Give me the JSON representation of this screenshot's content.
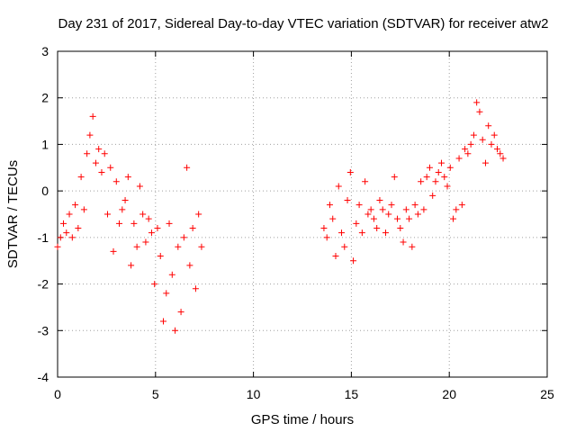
{
  "chart_data": {
    "type": "scatter",
    "title": "Day 231 of 2017, Sidereal Day-to-day VTEC variation (SDTVAR) for receiver atw2",
    "xlabel": "GPS time / hours",
    "ylabel": "SDTVAR / TECUs",
    "xlim": [
      0,
      25
    ],
    "ylim": [
      -4,
      3
    ],
    "xticks": [
      "0",
      "5",
      "10",
      "15",
      "20",
      "25"
    ],
    "yticks": [
      "-4",
      "-3",
      "-2",
      "-1",
      "0",
      "1",
      "2",
      "3"
    ],
    "grid": true,
    "marker": "plus",
    "color": "#ff0000",
    "series": [
      {
        "name": "atw2",
        "x": [
          0.0,
          0.15,
          0.3,
          0.45,
          0.6,
          0.75,
          0.9,
          1.05,
          1.2,
          1.35,
          1.5,
          1.65,
          1.8,
          1.95,
          2.1,
          2.25,
          2.4,
          2.55,
          2.7,
          2.85,
          3.0,
          3.15,
          3.3,
          3.45,
          3.6,
          3.75,
          3.9,
          4.05,
          4.2,
          4.35,
          4.5,
          4.65,
          4.8,
          4.95,
          5.1,
          5.25,
          5.4,
          5.55,
          5.7,
          5.85,
          6.0,
          6.15,
          6.3,
          6.45,
          6.6,
          6.75,
          6.9,
          7.05,
          7.2,
          7.35,
          13.6,
          13.75,
          13.9,
          14.05,
          14.2,
          14.35,
          14.5,
          14.65,
          14.8,
          14.95,
          15.1,
          15.25,
          15.4,
          15.55,
          15.7,
          15.85,
          16.0,
          16.15,
          16.3,
          16.45,
          16.6,
          16.75,
          16.9,
          17.05,
          17.2,
          17.35,
          17.5,
          17.65,
          17.8,
          17.95,
          18.1,
          18.25,
          18.4,
          18.55,
          18.7,
          18.85,
          19.0,
          19.15,
          19.3,
          19.45,
          19.6,
          19.75,
          19.9,
          20.05,
          20.2,
          20.35,
          20.5,
          20.65,
          20.8,
          20.95,
          21.1,
          21.25,
          21.4,
          21.55,
          21.7,
          21.85,
          22.0,
          22.15,
          22.3,
          22.45,
          22.6,
          22.75
        ],
        "y": [
          -1.2,
          -1.0,
          -0.7,
          -0.9,
          -0.5,
          -1.0,
          -0.3,
          -0.8,
          0.3,
          -0.4,
          0.8,
          1.2,
          1.6,
          0.6,
          0.9,
          0.4,
          0.8,
          -0.5,
          0.5,
          -1.3,
          0.2,
          -0.7,
          -0.4,
          -0.2,
          0.3,
          -1.6,
          -0.7,
          -1.2,
          0.1,
          -0.5,
          -1.1,
          -0.6,
          -0.9,
          -2.0,
          -0.8,
          -1.4,
          -2.8,
          -2.2,
          -0.7,
          -1.8,
          -3.0,
          -1.2,
          -2.6,
          -1.0,
          0.5,
          -1.6,
          -0.8,
          -2.1,
          -0.5,
          -1.2,
          -0.8,
          -1.0,
          -0.3,
          -0.6,
          -1.4,
          0.1,
          -0.9,
          -1.2,
          -0.2,
          0.4,
          -1.5,
          -0.7,
          -0.3,
          -0.9,
          0.2,
          -0.5,
          -0.4,
          -0.6,
          -0.8,
          -0.2,
          -0.4,
          -0.9,
          -0.5,
          -0.3,
          0.3,
          -0.6,
          -0.8,
          -1.1,
          -0.4,
          -0.6,
          -1.2,
          -0.3,
          -0.5,
          0.2,
          -0.4,
          0.3,
          0.5,
          -0.1,
          0.2,
          0.4,
          0.6,
          0.3,
          0.1,
          0.5,
          -0.6,
          -0.4,
          0.7,
          -0.3,
          0.9,
          0.8,
          1.0,
          1.2,
          1.9,
          1.7,
          1.1,
          0.6,
          1.4,
          1.0,
          1.2,
          0.9,
          0.8,
          0.7
        ]
      }
    ]
  }
}
